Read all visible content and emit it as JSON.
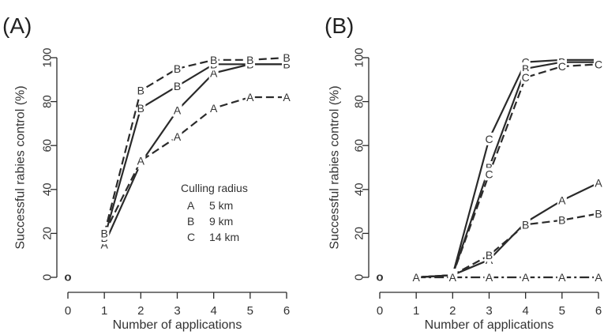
{
  "chart_data": [
    {
      "type": "line",
      "panel_label": "(A)",
      "xlabel": "Number of applications",
      "ylabel": "Successful rabies control (%)",
      "xlim": [
        0,
        6
      ],
      "ylim": [
        0,
        100
      ],
      "xticks": [
        0,
        1,
        2,
        3,
        4,
        5,
        6
      ],
      "yticks": [
        0,
        20,
        40,
        60,
        80,
        100
      ],
      "origin_marker": {
        "x": 0,
        "y": 0,
        "label": "o"
      },
      "legend": {
        "title": "Culling radius",
        "entries": [
          {
            "letter": "A",
            "label": "5 km"
          },
          {
            "letter": "B",
            "label": "9 km"
          },
          {
            "letter": "C",
            "label": "14 km"
          }
        ]
      },
      "series": [
        {
          "letter": "A",
          "dash": "solid",
          "x": [
            1,
            2,
            3,
            4,
            5,
            6
          ],
          "y": [
            15,
            52,
            76,
            93,
            97,
            97
          ]
        },
        {
          "letter": "B",
          "dash": "solid",
          "x": [
            1,
            2,
            3,
            4,
            5,
            6
          ],
          "y": [
            18,
            77,
            87,
            97,
            97,
            97
          ]
        },
        {
          "letter": "A",
          "dash": "dashed",
          "x": [
            1,
            2,
            3,
            4,
            5,
            6
          ],
          "y": [
            20,
            53,
            64,
            77,
            82,
            82
          ]
        },
        {
          "letter": "B",
          "dash": "dashed",
          "x": [
            1,
            2,
            3,
            4,
            5,
            6
          ],
          "y": [
            20,
            85,
            95,
            99,
            99,
            100
          ]
        }
      ]
    },
    {
      "type": "line",
      "panel_label": "(B)",
      "xlabel": "Number of applications",
      "ylabel": "Successful rabies control (%)",
      "xlim": [
        0,
        6
      ],
      "ylim": [
        0,
        100
      ],
      "xticks": [
        0,
        1,
        2,
        3,
        4,
        5,
        6
      ],
      "yticks": [
        0,
        20,
        40,
        60,
        80,
        100
      ],
      "origin_marker": {
        "x": 0,
        "y": 0,
        "label": "o"
      },
      "series": [
        {
          "letter": "C",
          "dash": "solid",
          "x": [
            1,
            2,
            3,
            4,
            5,
            6
          ],
          "y": [
            0,
            1,
            63,
            98,
            99,
            99
          ]
        },
        {
          "letter": "B",
          "dash": "solid",
          "x": [
            1,
            2,
            3,
            4,
            5,
            6
          ],
          "y": [
            0,
            1,
            50,
            95,
            98,
            98
          ]
        },
        {
          "letter": "C",
          "dash": "dashed",
          "x": [
            1,
            2,
            3,
            4,
            5,
            6
          ],
          "y": [
            0,
            1,
            47,
            91,
            96,
            97
          ]
        },
        {
          "letter": "A",
          "dash": "solid",
          "x": [
            1,
            2,
            3,
            4,
            5,
            6
          ],
          "y": [
            0,
            1,
            8,
            25,
            35,
            43
          ]
        },
        {
          "letter": "B",
          "dash": "dashed",
          "x": [
            1,
            2,
            3,
            4,
            5,
            6
          ],
          "y": [
            0,
            1,
            10,
            24,
            26,
            29
          ]
        },
        {
          "letter": "A",
          "dash": "dashdot",
          "x": [
            1,
            2,
            3,
            4,
            5,
            6
          ],
          "y": [
            0,
            0,
            0,
            0,
            0,
            0
          ]
        }
      ]
    }
  ]
}
